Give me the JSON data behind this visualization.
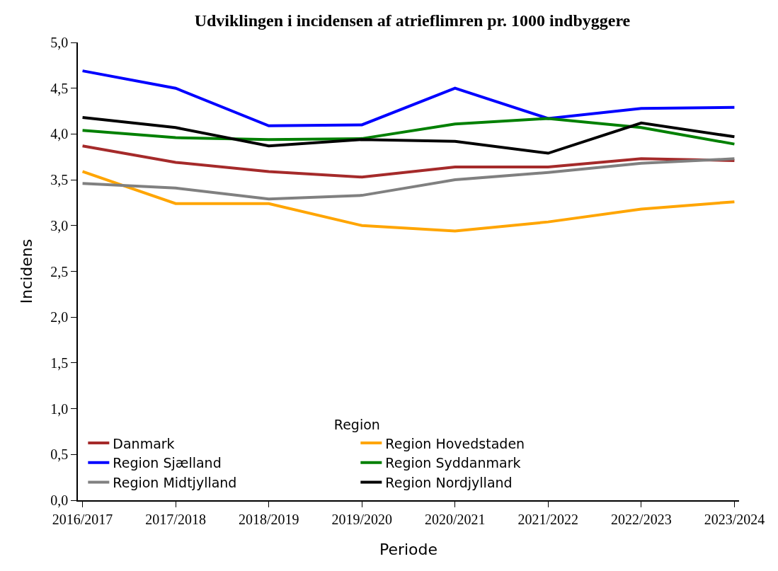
{
  "chart_data": {
    "type": "line",
    "title": "Udviklingen i incidensen af atrieflimren pr. 1000 indbyggere",
    "xlabel": "Periode",
    "ylabel": "Incidens",
    "legend_title": "Region",
    "categories": [
      "2016/2017",
      "2017/2018",
      "2018/2019",
      "2019/2020",
      "2020/2021",
      "2021/2022",
      "2022/2023",
      "2023/2024"
    ],
    "series": [
      {
        "name": "Danmark",
        "color": "#a52a2a",
        "values": [
          3.87,
          3.69,
          3.59,
          3.53,
          3.64,
          3.64,
          3.73,
          3.71
        ]
      },
      {
        "name": "Region Hovedstaden",
        "color": "#ffa500",
        "values": [
          3.59,
          3.24,
          3.24,
          3.0,
          2.94,
          3.04,
          3.18,
          3.26
        ]
      },
      {
        "name": "Region Sjælland",
        "color": "#0000ff",
        "values": [
          4.69,
          4.5,
          4.09,
          4.1,
          4.5,
          4.17,
          4.28,
          4.29
        ]
      },
      {
        "name": "Region Syddanmark",
        "color": "#008000",
        "values": [
          4.04,
          3.96,
          3.94,
          3.95,
          4.11,
          4.17,
          4.07,
          3.89
        ]
      },
      {
        "name": "Region Midtjylland",
        "color": "#808080",
        "values": [
          3.46,
          3.41,
          3.29,
          3.33,
          3.5,
          3.58,
          3.68,
          3.73
        ]
      },
      {
        "name": "Region Nordjylland",
        "color": "#000000",
        "values": [
          4.18,
          4.07,
          3.87,
          3.94,
          3.92,
          3.79,
          4.12,
          3.97
        ]
      }
    ],
    "ylim": [
      0,
      5
    ],
    "yticks": [
      {
        "value": 0,
        "label": "0,0"
      },
      {
        "value": 0.5,
        "label": "0,5"
      },
      {
        "value": 1,
        "label": "1,0"
      },
      {
        "value": 1.5,
        "label": "1,5"
      },
      {
        "value": 2,
        "label": "2,0"
      },
      {
        "value": 2.5,
        "label": "2,5"
      },
      {
        "value": 3,
        "label": "3,0"
      },
      {
        "value": 3.5,
        "label": "3,5"
      },
      {
        "value": 4,
        "label": "4,0"
      },
      {
        "value": 4.5,
        "label": "4,5"
      },
      {
        "value": 5,
        "label": "5,0"
      }
    ],
    "grid": false,
    "legend": "bottom left",
    "marker": "none",
    "line_style": "solid"
  }
}
